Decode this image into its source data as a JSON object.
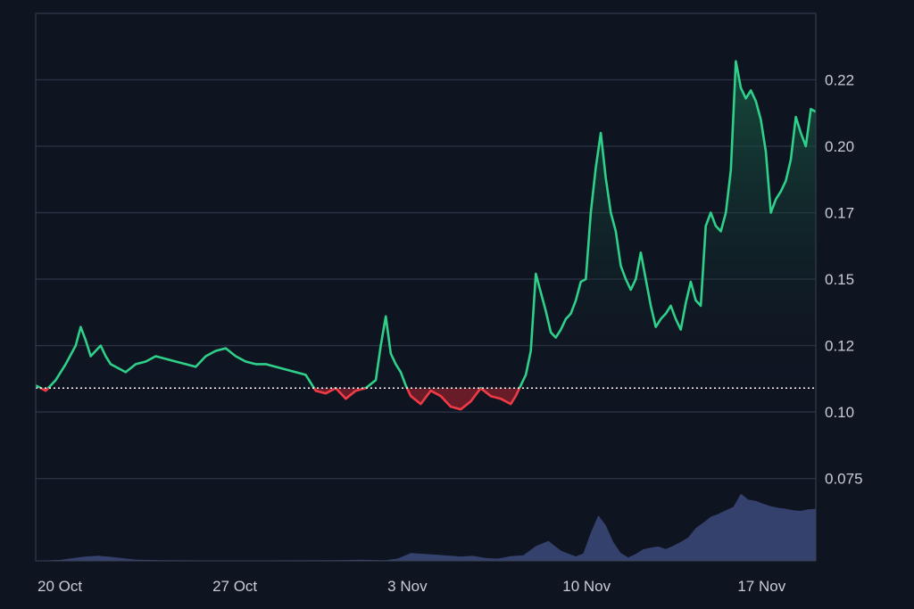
{
  "chart_data": {
    "type": "line",
    "title": "",
    "xlabel": "",
    "ylabel": "",
    "x_tick_labels": [
      "20 Oct",
      "27 Oct",
      "3 Nov",
      "10 Nov",
      "17 Nov"
    ],
    "x_tick_positions_day": [
      0,
      7,
      14,
      21,
      28
    ],
    "y_tick_labels": [
      "0.22",
      "0.20",
      "0.17",
      "0.15",
      "0.12",
      "0.10",
      "0.075"
    ],
    "y_tick_values": [
      0.225,
      0.2,
      0.175,
      0.15,
      0.125,
      0.1,
      0.075
    ],
    "ylim": [
      0.044,
      0.25
    ],
    "baseline": 0.109,
    "grid": true,
    "colors": {
      "up": "#2fd08a",
      "down": "#ef3b46",
      "volume": "#3a4676",
      "baseline": "#ffffff",
      "grid": "#2b3343",
      "background": "#0f1421"
    },
    "series": [
      {
        "x_day": [
          0,
          0.4,
          0.8,
          1.2,
          1.6,
          1.8,
          2.0,
          2.2,
          2.4,
          2.6,
          2.8,
          3.0,
          3.2,
          3.6,
          4.0,
          4.4,
          4.8,
          5.2,
          5.6,
          6.0,
          6.4,
          6.8,
          7.2,
          7.6,
          8.0,
          8.4,
          8.8,
          9.2,
          9.6,
          10.0,
          10.4,
          10.8,
          11.2,
          11.6,
          12.0,
          12.4,
          12.8,
          13.2,
          13.6,
          13.8,
          14.0,
          14.2,
          14.4,
          14.6,
          14.8,
          15.0,
          15.4,
          15.8,
          16.2,
          16.6,
          17.0,
          17.4,
          17.8,
          18.2,
          18.6,
          19.0,
          19.2,
          19.4,
          19.6,
          19.8,
          20.0,
          20.2,
          20.4,
          20.6,
          20.8,
          21.0,
          21.2,
          21.4,
          21.6,
          21.8,
          22.0,
          22.2,
          22.4,
          22.6,
          22.8,
          23.0,
          23.2,
          23.4,
          23.6,
          23.8,
          24.0,
          24.2,
          24.4,
          24.6,
          24.8,
          25.0,
          25.2,
          25.4,
          25.6,
          25.8,
          26.0,
          26.2,
          26.4,
          26.6,
          26.8,
          27.0,
          27.2,
          27.4,
          27.6,
          27.8,
          28.0,
          28.2,
          28.4,
          28.6,
          28.8,
          29.0,
          29.2,
          29.4,
          29.6,
          29.8,
          30.0,
          30.2,
          30.4,
          30.6,
          30.8,
          31.0,
          31.2
        ],
        "values": [
          0.11,
          0.108,
          0.112,
          0.118,
          0.125,
          0.132,
          0.127,
          0.121,
          0.123,
          0.125,
          0.121,
          0.118,
          0.117,
          0.115,
          0.118,
          0.119,
          0.121,
          0.12,
          0.119,
          0.118,
          0.117,
          0.121,
          0.123,
          0.124,
          0.121,
          0.119,
          0.118,
          0.118,
          0.117,
          0.116,
          0.115,
          0.114,
          0.108,
          0.107,
          0.109,
          0.105,
          0.108,
          0.109,
          0.112,
          0.125,
          0.136,
          0.122,
          0.118,
          0.115,
          0.11,
          0.106,
          0.103,
          0.108,
          0.106,
          0.102,
          0.101,
          0.104,
          0.109,
          0.106,
          0.105,
          0.103,
          0.106,
          0.11,
          0.114,
          0.123,
          0.152,
          0.145,
          0.138,
          0.13,
          0.128,
          0.131,
          0.135,
          0.137,
          0.142,
          0.149,
          0.15,
          0.175,
          0.192,
          0.205,
          0.188,
          0.175,
          0.168,
          0.155,
          0.15,
          0.146,
          0.15,
          0.16,
          0.15,
          0.14,
          0.132,
          0.135,
          0.137,
          0.14,
          0.135,
          0.131,
          0.141,
          0.149,
          0.142,
          0.14,
          0.17,
          0.175,
          0.17,
          0.168,
          0.175,
          0.191,
          0.232,
          0.222,
          0.218,
          0.221,
          0.217,
          0.21,
          0.198,
          0.175,
          0.18,
          0.183,
          0.187,
          0.195,
          0.211,
          0.205,
          0.2,
          0.214,
          0.213
        ]
      }
    ],
    "volume": {
      "x_day": [
        0,
        1,
        1.5,
        2,
        2.5,
        3,
        4,
        5,
        6,
        8,
        10,
        12,
        13,
        14,
        14.5,
        15,
        16,
        16.5,
        17,
        17.5,
        18,
        18.5,
        19,
        19.5,
        20,
        20.5,
        21,
        21.3,
        21.6,
        21.9,
        22.2,
        22.5,
        22.8,
        23.1,
        23.4,
        23.7,
        24,
        24.3,
        24.6,
        24.9,
        25.2,
        25.5,
        25.8,
        26.1,
        26.4,
        26.7,
        27,
        27.3,
        27.6,
        27.9,
        28.2,
        28.5,
        28.8,
        29.1,
        29.4,
        29.7,
        30,
        30.3,
        30.6,
        30.9,
        31.2
      ],
      "values": [
        0.1,
        0.8,
        2.2,
        3.5,
        4.1,
        3.2,
        1.0,
        0.6,
        0.4,
        0.3,
        0.4,
        0.5,
        0.9,
        0.4,
        2.0,
        6.2,
        5.0,
        4.2,
        3.5,
        4.0,
        2.2,
        1.8,
        3.8,
        4.4,
        11.8,
        16.0,
        8.2,
        5.8,
        3.6,
        6.0,
        22.5,
        36.4,
        28.5,
        15.1,
        6.3,
        2.8,
        5.6,
        9.3,
        10.6,
        11.5,
        9.5,
        12.1,
        15.2,
        18.7,
        26.3,
        30.5,
        35.3,
        37.6,
        40.5,
        43.2,
        53.8,
        49.0,
        48.0,
        45.7,
        43.8,
        42.5,
        41.7,
        40.5,
        40.1,
        41.3,
        41.7
      ]
    }
  }
}
